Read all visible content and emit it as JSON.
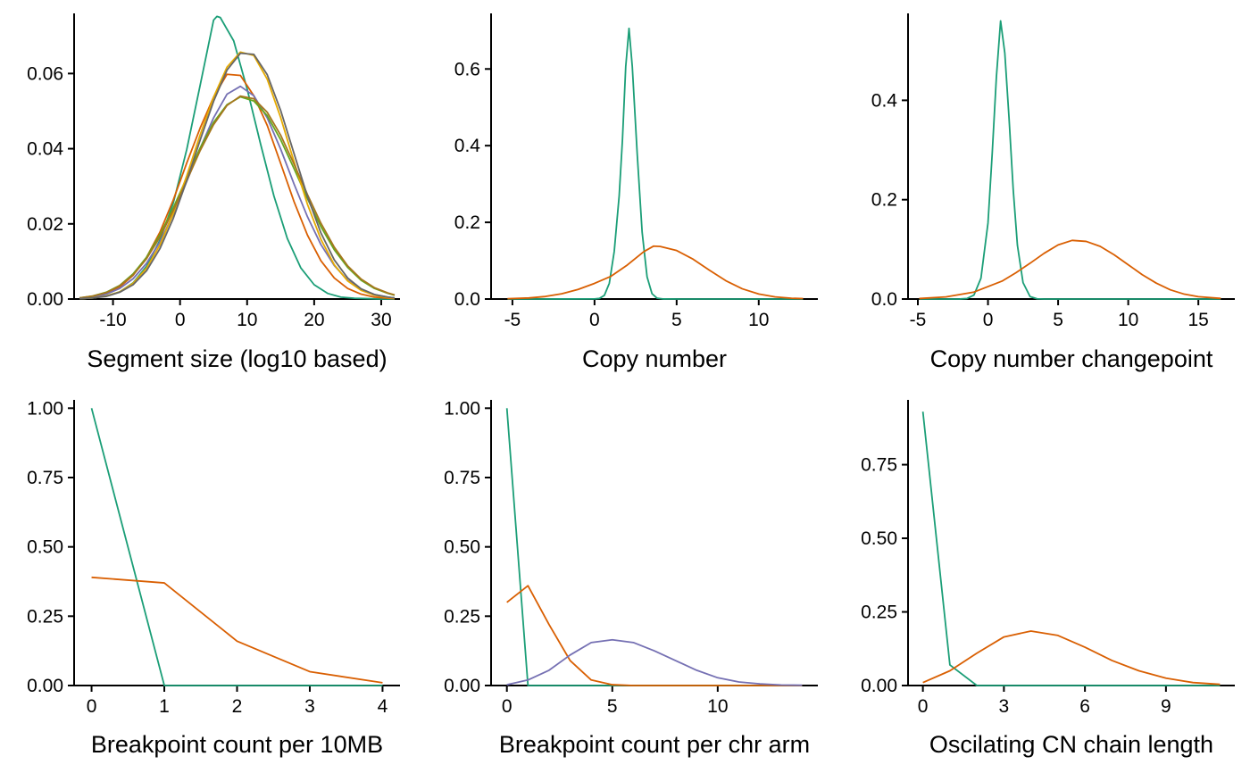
{
  "colors": {
    "green": "#1B9E77",
    "orange": "#D95F02",
    "purple": "#7570B3",
    "pink": "#E7298A",
    "lime": "#66A61E",
    "gold": "#E6AB02",
    "brown": "#A6761D",
    "gray": "#666666"
  },
  "chart_data": [
    {
      "type": "line",
      "xlabel": "Segment size (log10 based)",
      "ylabel": "",
      "xlim": [
        -15.8,
        32.8
      ],
      "ylim": [
        0,
        0.076
      ],
      "xticks": [
        -10,
        0,
        10,
        20,
        30
      ],
      "xtick_labels": [
        "-10",
        "0",
        "10",
        "20",
        "30"
      ],
      "yticks": [
        0,
        0.02,
        0.04,
        0.06
      ],
      "ytick_labels": [
        "0.00",
        "0.02",
        "0.04",
        "0.06"
      ],
      "grid": false,
      "legend": "none",
      "series": [
        {
          "color": "#1B9E77",
          "x": [
            -15,
            -13,
            -11,
            -9,
            -7,
            -5,
            -3,
            -1,
            1,
            3,
            5,
            5.5,
            6,
            8,
            10,
            12,
            14,
            16,
            18,
            20,
            22,
            24,
            26,
            28,
            30,
            32
          ],
          "y": [
            0.0001,
            0.0003,
            0.0008,
            0.0019,
            0.0043,
            0.0087,
            0.0157,
            0.0256,
            0.0398,
            0.0569,
            0.0742,
            0.0752,
            0.0749,
            0.0687,
            0.0559,
            0.0413,
            0.0274,
            0.0161,
            0.0083,
            0.0038,
            0.0015,
            0.0005,
            0.0002,
            0.0001,
            0.0,
            0.0
          ]
        },
        {
          "color": "#D95F02",
          "x": [
            -15,
            -13,
            -11,
            -9,
            -7,
            -5,
            -3,
            -1,
            1,
            3,
            5,
            7,
            9,
            11,
            13,
            15,
            17,
            19,
            21,
            23,
            25,
            27,
            29,
            31,
            32
          ],
          "y": [
            0.0002,
            0.0005,
            0.0014,
            0.0032,
            0.0063,
            0.0111,
            0.0178,
            0.0264,
            0.0362,
            0.0455,
            0.0537,
            0.0598,
            0.0595,
            0.0541,
            0.0462,
            0.0361,
            0.0259,
            0.017,
            0.0102,
            0.0056,
            0.0028,
            0.0013,
            0.0005,
            0.0002,
            0.0001
          ]
        },
        {
          "color": "#7570B3",
          "x": [
            -15,
            -13,
            -11,
            -9,
            -7,
            -5,
            -3,
            -1,
            1,
            3,
            5,
            7,
            9,
            11,
            13,
            15,
            17,
            19,
            21,
            23,
            25,
            27,
            29,
            31,
            32
          ],
          "y": [
            0.0002,
            0.0005,
            0.0013,
            0.0028,
            0.0054,
            0.0095,
            0.0152,
            0.0226,
            0.0313,
            0.0401,
            0.0482,
            0.0545,
            0.0566,
            0.0541,
            0.0482,
            0.0399,
            0.0306,
            0.0219,
            0.0145,
            0.0089,
            0.005,
            0.0026,
            0.0012,
            0.0005,
            0.0003
          ]
        },
        {
          "color": "#66A61E",
          "x": [
            -15,
            -13,
            -11,
            -9,
            -7,
            -5,
            -3,
            -1,
            1,
            3,
            5,
            7,
            9,
            11,
            13,
            15,
            17,
            19,
            21,
            23,
            25,
            27,
            29,
            31,
            32
          ],
          "y": [
            0.0003,
            0.0008,
            0.0018,
            0.0036,
            0.0067,
            0.0111,
            0.0171,
            0.0243,
            0.0323,
            0.0402,
            0.047,
            0.0517,
            0.0538,
            0.0527,
            0.0488,
            0.0424,
            0.0347,
            0.0267,
            0.0193,
            0.0131,
            0.0084,
            0.005,
            0.0028,
            0.0015,
            0.001
          ]
        },
        {
          "color": "#E6AB02",
          "x": [
            -15,
            -13,
            -11,
            -9,
            -7,
            -5,
            -3,
            -1,
            1,
            3,
            5,
            7,
            9,
            11,
            13,
            15,
            17,
            19,
            21,
            23,
            25,
            27,
            29,
            31,
            32
          ],
          "y": [
            0.0001,
            0.0003,
            0.0008,
            0.0019,
            0.0042,
            0.0082,
            0.0144,
            0.0228,
            0.0328,
            0.0437,
            0.0537,
            0.0617,
            0.0657,
            0.0648,
            0.0585,
            0.0483,
            0.0365,
            0.0252,
            0.0159,
            0.0091,
            0.0048,
            0.0023,
            0.001,
            0.0004,
            0.0002
          ]
        },
        {
          "color": "#A6761D",
          "x": [
            -15,
            -13,
            -11,
            -9,
            -7,
            -5,
            -3,
            -1,
            1,
            3,
            5,
            7,
            9,
            11,
            13,
            15,
            17,
            19,
            21,
            23,
            25,
            27,
            29,
            31,
            32
          ],
          "y": [
            0.0003,
            0.0008,
            0.0017,
            0.0035,
            0.0064,
            0.0107,
            0.0165,
            0.0236,
            0.0315,
            0.0395,
            0.0464,
            0.0515,
            0.054,
            0.0533,
            0.0497,
            0.0436,
            0.0359,
            0.0278,
            0.0202,
            0.0138,
            0.0088,
            0.0053,
            0.003,
            0.0016,
            0.0011
          ]
        },
        {
          "color": "#666666",
          "x": [
            -15,
            -13,
            -11,
            -9,
            -7,
            -5,
            -3,
            -1,
            1,
            3,
            5,
            7,
            9,
            11,
            13,
            15,
            17,
            19,
            21,
            23,
            25,
            27,
            29,
            31,
            32
          ],
          "y": [
            0.0001,
            0.0003,
            0.0007,
            0.0018,
            0.0038,
            0.0075,
            0.0134,
            0.0215,
            0.0315,
            0.0423,
            0.0526,
            0.0609,
            0.0654,
            0.0651,
            0.0597,
            0.0502,
            0.0387,
            0.0273,
            0.0176,
            0.0104,
            0.0056,
            0.0027,
            0.0012,
            0.0005,
            0.0003
          ]
        }
      ]
    },
    {
      "type": "line",
      "xlabel": "Copy number",
      "ylabel": "",
      "xlim": [
        -6.3,
        13.6
      ],
      "ylim": [
        0,
        0.745
      ],
      "xticks": [
        -5,
        0,
        5,
        10
      ],
      "xtick_labels": [
        "-5",
        "0",
        "5",
        "10"
      ],
      "yticks": [
        0,
        0.2,
        0.4,
        0.6
      ],
      "ytick_labels": [
        "0.0",
        "0.2",
        "0.4",
        "0.6"
      ],
      "grid": false,
      "legend": "none",
      "series": [
        {
          "color": "#1B9E77",
          "x": [
            -5.3,
            0,
            0.3,
            0.6,
            0.9,
            1.2,
            1.5,
            1.7,
            1.9,
            2.1,
            2.3,
            2.6,
            2.9,
            3.2,
            3.5,
            3.8,
            4.2,
            12.7
          ],
          "y": [
            0,
            0.0002,
            0.0016,
            0.0096,
            0.0409,
            0.124,
            0.2688,
            0.415,
            0.606,
            0.706,
            0.606,
            0.378,
            0.174,
            0.058,
            0.014,
            0.0024,
            0.0001,
            0
          ]
        },
        {
          "color": "#D95F02",
          "x": [
            -5.3,
            -4,
            -3,
            -2,
            -1,
            0,
            1,
            2,
            3,
            3.6,
            4,
            5,
            6,
            7,
            8,
            9,
            10,
            11,
            12,
            12.7
          ],
          "y": [
            0.0008,
            0.0028,
            0.0066,
            0.0136,
            0.025,
            0.0408,
            0.0593,
            0.0888,
            0.1236,
            0.138,
            0.137,
            0.1265,
            0.104,
            0.075,
            0.0476,
            0.0266,
            0.0131,
            0.0056,
            0.0021,
            0.0011
          ]
        }
      ]
    },
    {
      "type": "line",
      "xlabel": "Copy number changepoint",
      "ylabel": "",
      "xlim": [
        -5.7,
        17.6
      ],
      "ylim": [
        0,
        0.575
      ],
      "xticks": [
        -5,
        0,
        5,
        10,
        15
      ],
      "xtick_labels": [
        "-5",
        "0",
        "5",
        "10",
        "15"
      ],
      "yticks": [
        0,
        0.2,
        0.4
      ],
      "ytick_labels": [
        "0.0",
        "0.2",
        "0.4"
      ],
      "grid": false,
      "legend": "none",
      "series": [
        {
          "color": "#1B9E77",
          "x": [
            -4.9,
            -2,
            -1.5,
            -1,
            -0.5,
            0,
            0.3,
            0.6,
            0.9,
            1.2,
            1.5,
            1.8,
            2.1,
            2.5,
            3,
            3.5,
            4,
            16.6
          ],
          "y": [
            0,
            0.0001,
            0.001,
            0.008,
            0.042,
            0.153,
            0.292,
            0.447,
            0.56,
            0.495,
            0.365,
            0.22,
            0.108,
            0.033,
            0.005,
            0.0004,
            0,
            0
          ]
        },
        {
          "color": "#D95F02",
          "x": [
            -4.9,
            -3,
            -1,
            1,
            2,
            3,
            4,
            5,
            6,
            7,
            8,
            9,
            10,
            11,
            12,
            13,
            14,
            15,
            16.6
          ],
          "y": [
            0.001,
            0.0042,
            0.014,
            0.036,
            0.053,
            0.072,
            0.092,
            0.109,
            0.118,
            0.116,
            0.106,
            0.089,
            0.069,
            0.049,
            0.032,
            0.0185,
            0.0098,
            0.0047,
            0.0012
          ]
        }
      ]
    },
    {
      "type": "line",
      "xlabel": "Breakpoint count per 10MB",
      "ylabel": "",
      "xlim": [
        -0.24,
        4.24
      ],
      "ylim": [
        0,
        1.03
      ],
      "xticks": [
        0,
        1,
        2,
        3,
        4
      ],
      "xtick_labels": [
        "0",
        "1",
        "2",
        "3",
        "4"
      ],
      "yticks": [
        0,
        0.25,
        0.5,
        0.75,
        1.0
      ],
      "ytick_labels": [
        "0.00",
        "0.25",
        "0.50",
        "0.75",
        "1.00"
      ],
      "grid": false,
      "legend": "none",
      "series": [
        {
          "color": "#1B9E77",
          "x": [
            0,
            1,
            2,
            3,
            4
          ],
          "y": [
            1.0,
            0.0,
            0.0,
            0.0,
            0.0
          ]
        },
        {
          "color": "#D95F02",
          "x": [
            0,
            1,
            2,
            3,
            4
          ],
          "y": [
            0.39,
            0.37,
            0.16,
            0.05,
            0.01
          ]
        }
      ]
    },
    {
      "type": "line",
      "xlabel": "Breakpoint count per chr arm",
      "ylabel": "",
      "xlim": [
        -0.75,
        14.75
      ],
      "ylim": [
        0,
        1.03
      ],
      "xticks": [
        0,
        5,
        10
      ],
      "xtick_labels": [
        "0",
        "5",
        "10"
      ],
      "yticks": [
        0,
        0.25,
        0.5,
        0.75,
        1.0
      ],
      "ytick_labels": [
        "0.00",
        "0.25",
        "0.50",
        "0.75",
        "1.00"
      ],
      "grid": false,
      "legend": "none",
      "series": [
        {
          "color": "#1B9E77",
          "x": [
            0,
            1,
            2,
            3,
            4,
            5,
            6,
            7,
            8,
            9,
            10,
            11,
            12,
            13,
            14
          ],
          "y": [
            1.0,
            0,
            0,
            0,
            0,
            0,
            0,
            0,
            0,
            0,
            0,
            0,
            0,
            0,
            0
          ]
        },
        {
          "color": "#D95F02",
          "x": [
            0,
            1,
            2,
            3,
            4,
            5,
            6,
            7,
            8,
            9,
            10,
            11,
            12,
            13,
            14
          ],
          "y": [
            0.3,
            0.36,
            0.22,
            0.09,
            0.02,
            0.003,
            0,
            0,
            0,
            0,
            0,
            0,
            0,
            0,
            0
          ]
        },
        {
          "color": "#7570B3",
          "x": [
            0,
            1,
            2,
            3,
            4,
            5,
            6,
            7,
            8,
            9,
            10,
            11,
            12,
            13,
            14
          ],
          "y": [
            0.003,
            0.02,
            0.055,
            0.11,
            0.155,
            0.165,
            0.155,
            0.125,
            0.09,
            0.055,
            0.028,
            0.013,
            0.006,
            0.002,
            0.001
          ]
        }
      ]
    },
    {
      "type": "line",
      "xlabel": "Oscilating CN chain length",
      "ylabel": "",
      "xlim": [
        -0.55,
        11.55
      ],
      "ylim": [
        0,
        0.97
      ],
      "xticks": [
        0,
        3,
        6,
        9
      ],
      "xtick_labels": [
        "0",
        "3",
        "6",
        "9"
      ],
      "yticks": [
        0,
        0.25,
        0.5,
        0.75
      ],
      "ytick_labels": [
        "0.00",
        "0.25",
        "0.50",
        "0.75"
      ],
      "grid": false,
      "legend": "none",
      "series": [
        {
          "color": "#1B9E77",
          "x": [
            0,
            1,
            2,
            3,
            4,
            5,
            6,
            7,
            8,
            9,
            10,
            11
          ],
          "y": [
            0.93,
            0.07,
            0,
            0,
            0,
            0,
            0,
            0,
            0,
            0,
            0,
            0
          ]
        },
        {
          "color": "#D95F02",
          "x": [
            0,
            1,
            2,
            3,
            4,
            5,
            6,
            7,
            8,
            9,
            10,
            11
          ],
          "y": [
            0.01,
            0.05,
            0.11,
            0.165,
            0.185,
            0.17,
            0.13,
            0.085,
            0.05,
            0.025,
            0.01,
            0.004
          ]
        }
      ]
    }
  ]
}
